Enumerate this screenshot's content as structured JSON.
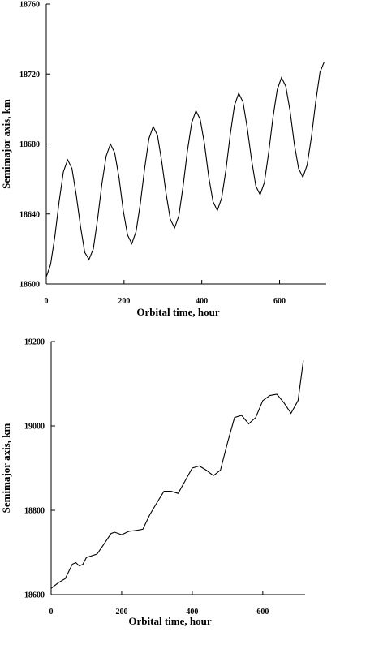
{
  "chart_data": [
    {
      "type": "line",
      "x_label": "Orbital time, hour",
      "y_label": "Semimajor axis, km",
      "xlim": [
        0,
        720
      ],
      "xticks": [
        0,
        200,
        400,
        600
      ],
      "ylim": [
        18600,
        18760
      ],
      "yticks": [
        18600,
        18640,
        18680,
        18720,
        18760
      ],
      "series": [
        {
          "color": "#000000",
          "x": [
            0,
            11,
            22,
            33,
            44,
            55,
            66,
            77,
            88,
            99,
            110,
            121,
            132,
            143,
            154,
            165,
            176,
            187,
            198,
            209,
            220,
            231,
            242,
            253,
            264,
            275,
            286,
            297,
            308,
            319,
            330,
            341,
            352,
            363,
            374,
            385,
            396,
            407,
            418,
            429,
            440,
            451,
            462,
            473,
            484,
            495,
            506,
            517,
            528,
            539,
            550,
            561,
            572,
            583,
            594,
            605,
            616,
            627,
            638,
            649,
            660,
            671,
            682,
            693,
            704,
            715
          ],
          "values": [
            18604,
            18611,
            18627,
            18647,
            18664,
            18671,
            18666,
            18651,
            18633,
            18618,
            18614,
            18620,
            18637,
            18657,
            18673,
            18680,
            18675,
            18661,
            18642,
            18628,
            18623,
            18630,
            18646,
            18666,
            18683,
            18690,
            18685,
            18670,
            18652,
            18637,
            18632,
            18639,
            18656,
            18676,
            18692,
            18699,
            18694,
            18680,
            18661,
            18647,
            18642,
            18649,
            18665,
            18685,
            18702,
            18709,
            18704,
            18689,
            18671,
            18656,
            18651,
            18658,
            18675,
            18695,
            18711,
            18718,
            18713,
            18699,
            18680,
            18666,
            18661,
            18668,
            18684,
            18704,
            18721,
            18727
          ]
        }
      ]
    },
    {
      "type": "line",
      "x_label": "Orbital time, hour",
      "y_label": "Semimajor axis, km",
      "xlim": [
        0,
        720
      ],
      "xticks": [
        0,
        200,
        400,
        600
      ],
      "ylim": [
        18600,
        19200
      ],
      "yticks": [
        18600,
        18800,
        19000,
        19200
      ],
      "series": [
        {
          "color": "#000000",
          "x": [
            0,
            20,
            40,
            60,
            70,
            80,
            90,
            100,
            130,
            150,
            170,
            180,
            200,
            220,
            240,
            260,
            280,
            300,
            320,
            340,
            360,
            380,
            400,
            420,
            440,
            460,
            480,
            500,
            520,
            540,
            560,
            580,
            600,
            620,
            640,
            660,
            680,
            700,
            715
          ],
          "values": [
            18615,
            18628,
            18638,
            18672,
            18676,
            18668,
            18672,
            18688,
            18696,
            18720,
            18745,
            18748,
            18742,
            18750,
            18752,
            18755,
            18790,
            18818,
            18845,
            18845,
            18840,
            18870,
            18900,
            18905,
            18895,
            18882,
            18895,
            18960,
            19020,
            19025,
            19005,
            19020,
            19060,
            19072,
            19075,
            19055,
            19030,
            19060,
            19155
          ]
        }
      ]
    }
  ]
}
